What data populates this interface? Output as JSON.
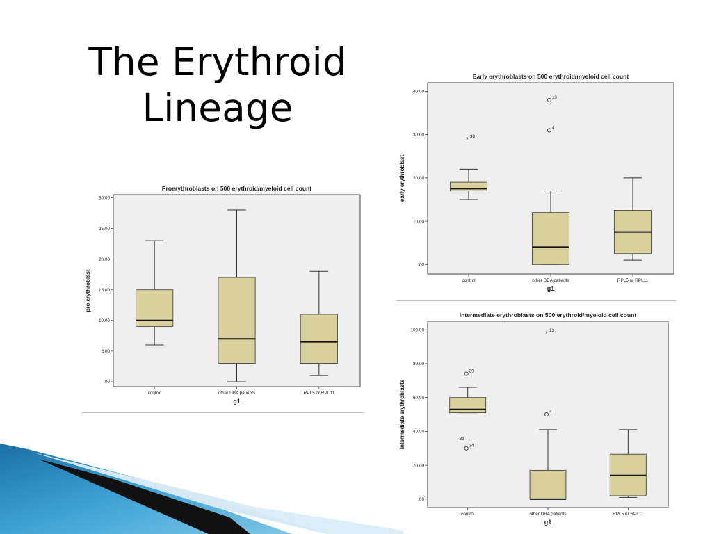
{
  "slide": {
    "title_line1": "The Erythroid",
    "title_line2": "Lineage"
  },
  "colors": {
    "plot_background": "#efefef",
    "box_fill": "#d8d19c",
    "box_stroke": "#555555",
    "accent_blue": "#2f8ac0"
  },
  "chart_data": [
    {
      "id": "pro",
      "type": "boxplot",
      "title": "Proerythroblasts on 500 erythroid/myeloid cell count",
      "xlabel": "g1",
      "ylabel": "pro erythroblast",
      "ylim": [
        -0.8,
        30.5
      ],
      "yticks": [
        0,
        5,
        10,
        15,
        20,
        25,
        30
      ],
      "ytick_labels": [
        ".00",
        "5.00",
        "10.00",
        "15.00",
        "20.00",
        "25.00",
        "30.00"
      ],
      "categories": [
        "control",
        "other DBA patients",
        "RPL5 or RPL11"
      ],
      "boxes": [
        {
          "whisker_low": 6,
          "q1": 9,
          "median": 10,
          "q3": 15,
          "whisker_high": 23
        },
        {
          "whisker_low": 0,
          "q1": 3,
          "median": 7,
          "q3": 17,
          "whisker_high": 28
        },
        {
          "whisker_low": 1,
          "q1": 3,
          "median": 6.5,
          "q3": 11,
          "whisker_high": 18
        }
      ],
      "outliers": []
    },
    {
      "id": "early",
      "type": "boxplot",
      "title": "Early erythroblasts on 500 erythroid/myeloid cell count",
      "xlabel": "g1",
      "ylabel": "early erythroblast",
      "ylim": [
        -2.2,
        42
      ],
      "yticks": [
        0,
        10,
        20,
        30,
        40
      ],
      "ytick_labels": [
        ".00",
        "10.00",
        "20.00",
        "30.00",
        "40.00"
      ],
      "categories": [
        "control",
        "other DBA patients",
        "RPL5 or RPL11"
      ],
      "boxes": [
        {
          "whisker_low": 15,
          "q1": 17,
          "median": 17.5,
          "q3": 19,
          "whisker_high": 22
        },
        {
          "whisker_low": 0,
          "q1": 0,
          "median": 4,
          "q3": 12,
          "whisker_high": 17
        },
        {
          "whisker_low": 1,
          "q1": 2.5,
          "median": 7.5,
          "q3": 12.5,
          "whisker_high": 20
        }
      ],
      "outliers": [
        {
          "cat": 0,
          "y": 29,
          "marker": "star",
          "label": "38"
        },
        {
          "cat": 1,
          "y": 38,
          "marker": "circle",
          "label": "13"
        },
        {
          "cat": 1,
          "y": 31,
          "marker": "circle",
          "label": "4"
        }
      ]
    },
    {
      "id": "intermediate",
      "type": "boxplot",
      "title": "Intermediate erythroblasts on 500 erythroid/myeloid cell count",
      "xlabel": "g1",
      "ylabel": "Intermediate erythroblasts",
      "ylim": [
        -5,
        105
      ],
      "yticks": [
        0,
        20,
        40,
        60,
        80,
        100
      ],
      "ytick_labels": [
        ".00",
        "20.00",
        "40.00",
        "60.00",
        "80.00",
        "100.00"
      ],
      "categories": [
        "control",
        "other DBA patients",
        "RPL5 or RPL11"
      ],
      "boxes": [
        {
          "whisker_low": 51,
          "q1": 51,
          "median": 53,
          "q3": 60,
          "whisker_high": 66
        },
        {
          "whisker_low": 0,
          "q1": 0,
          "median": 0,
          "q3": 17,
          "whisker_high": 41
        },
        {
          "whisker_low": 1,
          "q1": 2,
          "median": 14,
          "q3": 26.5,
          "whisker_high": 41
        }
      ],
      "outliers": [
        {
          "cat": 0,
          "y": 74,
          "marker": "circle",
          "label": "39"
        },
        {
          "cat": 0,
          "y": 30,
          "marker": "circle",
          "label": "34"
        },
        {
          "cat": 0,
          "y": 34,
          "marker": "none",
          "label": "33"
        },
        {
          "cat": 1,
          "y": 98,
          "marker": "star",
          "label": "13"
        },
        {
          "cat": 1,
          "y": 50,
          "marker": "circle",
          "label": "4"
        }
      ]
    }
  ]
}
